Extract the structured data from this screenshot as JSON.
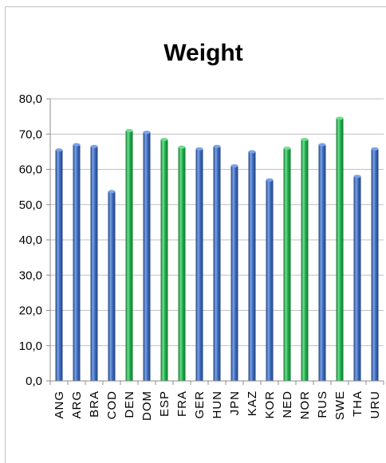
{
  "chart_data": {
    "type": "bar",
    "title": "Weight",
    "xlabel": "",
    "ylabel": "",
    "ylim": [
      0,
      80
    ],
    "ytick_step": 10,
    "ytick_labels": [
      "0,0",
      "10,0",
      "20,0",
      "30,0",
      "40,0",
      "50,0",
      "60,0",
      "70,0",
      "80,0"
    ],
    "grid": true,
    "legend": "none",
    "categories": [
      "ANG",
      "ARG",
      "BRA",
      "COD",
      "DEN",
      "DOM",
      "ESP",
      "FRA",
      "GER",
      "HUN",
      "JPN",
      "KAZ",
      "KOR",
      "NED",
      "NOR",
      "RUS",
      "SWE",
      "THA",
      "URU"
    ],
    "values": [
      65.5,
      67,
      66.5,
      53.7,
      71,
      70.5,
      68.5,
      66.3,
      65.8,
      66.5,
      61,
      65,
      57,
      66,
      68.5,
      67,
      74.5,
      58,
      65.8
    ],
    "bar_colors": [
      "blue",
      "blue",
      "blue",
      "blue",
      "green",
      "blue",
      "green",
      "green",
      "blue",
      "blue",
      "blue",
      "blue",
      "blue",
      "green",
      "green",
      "blue",
      "green",
      "blue",
      "blue"
    ],
    "colors": {
      "blue": "#3f6cc0",
      "blue_light": "#7aa3e8",
      "blue_dark": "#23427e",
      "green": "#1fae4a",
      "green_light": "#6fe08f",
      "green_dark": "#127a31",
      "grid": "#bfbfbf",
      "axis": "#8c8c8c"
    }
  }
}
